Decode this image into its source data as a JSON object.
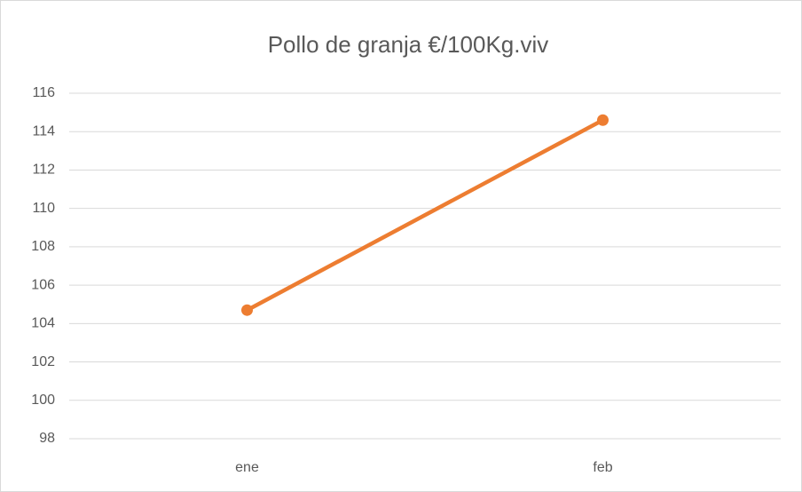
{
  "chart_data": {
    "type": "line",
    "title": "Pollo de granja €/100Kg.viv",
    "categories": [
      "ene",
      "feb"
    ],
    "values": [
      104.7,
      114.6
    ],
    "color": "#ed7d31",
    "ylim": [
      98,
      116
    ],
    "yticks": [
      98,
      100,
      102,
      104,
      106,
      108,
      110,
      112,
      114,
      116
    ],
    "grid": true
  }
}
